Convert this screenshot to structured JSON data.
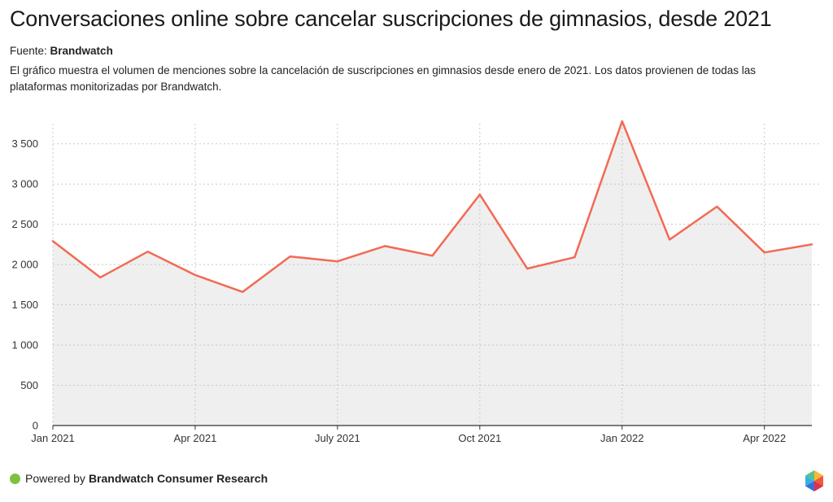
{
  "header": {
    "title": "Conversaciones online sobre cancelar suscripciones de gimnasios, desde 2021",
    "source_label": "Fuente:",
    "source_name": "Brandwatch",
    "description": "El gráfico muestra el volumen de menciones sobre la cancelación de suscripciones en gimnasios desde enero de 2021. Los datos provienen de todas las plataformas monitorizadas por Brandwatch."
  },
  "footer": {
    "powered_prefix": "Powered by",
    "powered_name": "Brandwatch Consumer Research",
    "colors": {
      "dot": "#7cc242"
    }
  },
  "chart_data": {
    "type": "area",
    "title": "Conversaciones online sobre cancelar suscripciones de gimnasios, desde 2021",
    "xlabel": "",
    "ylabel": "",
    "ylim": [
      0,
      3750
    ],
    "yticks": [
      0,
      500,
      1000,
      1500,
      2000,
      2500,
      3000,
      3500
    ],
    "ytick_labels": [
      "0",
      "500",
      "1 000",
      "1 500",
      "2 000",
      "2 500",
      "3 000",
      "3 500"
    ],
    "x": [
      "2021-01",
      "2021-02",
      "2021-03",
      "2021-04",
      "2021-05",
      "2021-06",
      "2021-07",
      "2021-08",
      "2021-09",
      "2021-10",
      "2021-11",
      "2021-12",
      "2022-01",
      "2022-02",
      "2022-03",
      "2022-04",
      "2022-05"
    ],
    "xtick_index": [
      0,
      3,
      6,
      9,
      12,
      15
    ],
    "xtick_labels": [
      "Jan 2021",
      "Apr 2021",
      "July 2021",
      "Oct 2021",
      "Jan 2022",
      "Apr 2022"
    ],
    "series": [
      {
        "name": "Menciones",
        "values": [
          2290,
          1840,
          2160,
          1870,
          1660,
          2100,
          2040,
          2230,
          2110,
          2870,
          1950,
          2090,
          3780,
          2310,
          2720,
          2150,
          2250
        ]
      }
    ],
    "grid": true,
    "colors": {
      "line": "#f26a55",
      "fill": "#efefef",
      "grid": "#c8c8c8",
      "axis": "#333333"
    }
  }
}
